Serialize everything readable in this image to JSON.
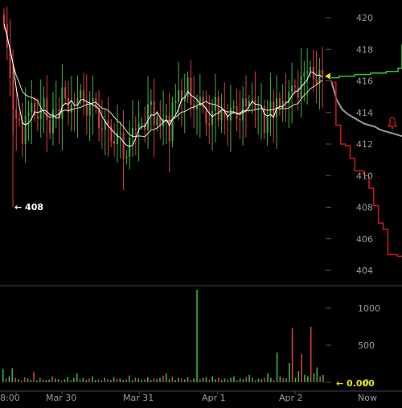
{
  "chart_data": {
    "type": "candlestick",
    "price_axis": {
      "ticks": [
        420,
        418,
        416,
        414,
        412,
        410,
        408,
        406,
        404
      ],
      "range": [
        403,
        421
      ]
    },
    "volume_axis": {
      "ticks": [
        1000,
        500,
        0
      ],
      "range": [
        0,
        1300
      ]
    },
    "x_ticks": [
      "8:00",
      "Mar 30",
      "Mar 31",
      "Apr 1",
      "Apr 2",
      "Now"
    ],
    "annotations": {
      "low_marker": "← 408",
      "volume_marker": "← 0.000",
      "pointer_price": 416.3
    },
    "price_series": {
      "close": [
        419.6,
        418.1,
        416.2,
        414.2,
        413.6,
        413.5,
        412.0,
        413.8,
        414.0,
        414.6,
        413.8,
        413.6,
        414.3,
        414.9,
        413.5,
        412.7,
        414.2,
        414.2,
        413.6,
        415.6,
        414.9,
        414.0,
        414.5,
        414.4,
        414.9,
        415.4,
        414.6,
        413.8,
        414.6,
        414.9,
        414.3,
        413.0,
        412.9,
        413.5,
        413.2,
        412.2,
        412.0,
        412.7,
        412.7,
        411.1,
        411.2,
        412.4,
        413.0,
        412.9,
        413.3,
        413.3,
        412.9,
        414.5,
        414.7,
        413.2,
        413.7,
        413.1,
        413.6,
        413.8,
        412.2,
        414.6,
        414.7,
        415.4,
        414.7,
        415.0,
        416.2,
        414.5,
        414.2,
        414.4,
        415.0,
        414.3,
        413.3,
        413.2,
        414.1,
        415.0,
        413.5,
        414.1,
        413.8,
        413.5,
        414.3,
        414.4,
        413.6,
        413.5,
        414.9,
        414.4,
        414.7,
        414.8,
        414.2,
        414.3,
        414.4,
        412.7,
        413.7,
        414.7,
        413.7,
        414.9,
        414.2,
        414.7,
        414.6,
        415.3,
        415.7,
        415.6,
        414.9,
        416.3,
        416.5,
        416.6,
        416.9,
        416.1,
        415.8,
        416.7,
        416.3
      ],
      "fast_ma_label": "",
      "slow_ma_label": ""
    },
    "projections": {
      "green_steps": [
        416.2,
        416.2,
        416.3,
        416.3,
        416.3,
        416.3,
        416.4,
        416.4,
        416.4,
        416.4,
        416.5,
        416.5,
        416.5,
        416.5,
        416.6,
        416.6,
        416.6,
        416.8,
        418.3
      ],
      "grey_curve": [
        416.0,
        414.8,
        414.2,
        413.9,
        413.7,
        413.5,
        413.3,
        413.2,
        413.1,
        412.9,
        412.8,
        412.7,
        412.6,
        412.5
      ],
      "red_steps": [
        415.9,
        413.2,
        412.0,
        411.9,
        411.1,
        410.3,
        410.3,
        410.0,
        409.2,
        408.1,
        407.0,
        406.6,
        405.0,
        405.0,
        404.9,
        404.9
      ],
      "alert_icon": "bell-icon",
      "grey_start_price": 416.0
    },
    "volume_series": [
      180,
      50,
      80,
      190,
      60,
      40,
      20,
      70,
      50,
      30,
      140,
      25,
      60,
      40,
      30,
      35,
      80,
      50,
      40,
      20,
      40,
      70,
      30,
      60,
      120,
      40,
      60,
      30,
      50,
      80,
      30,
      40,
      25,
      60,
      40,
      30,
      70,
      45,
      50,
      30,
      40,
      90,
      30,
      60,
      50,
      30,
      40,
      70,
      30,
      50,
      40,
      60,
      90,
      120,
      40,
      80,
      30,
      60,
      50,
      40,
      70,
      30,
      50,
      1250,
      40,
      60,
      70,
      30,
      80,
      40,
      60,
      30,
      50,
      40,
      60,
      80,
      30,
      50,
      40,
      70,
      100,
      60,
      30,
      50,
      40,
      60,
      120,
      60,
      30,
      400,
      80,
      60,
      50,
      260,
      730,
      60,
      150,
      380,
      100,
      80,
      750,
      120,
      200,
      80,
      100
    ],
    "colors": {
      "up": "#3fae3f",
      "down": "#d23f3f",
      "wick": "#9c9c9c",
      "fast_ma": "#ffffff",
      "slow_ma": "#e9e2b0",
      "green_line": "#3bc43b",
      "grey_line": "#9a9a9a",
      "red_line": "#cc1a1a",
      "yellow_marker": "#e8e800",
      "grid": "#2a2a2a",
      "text": "#9a9a9a"
    }
  }
}
